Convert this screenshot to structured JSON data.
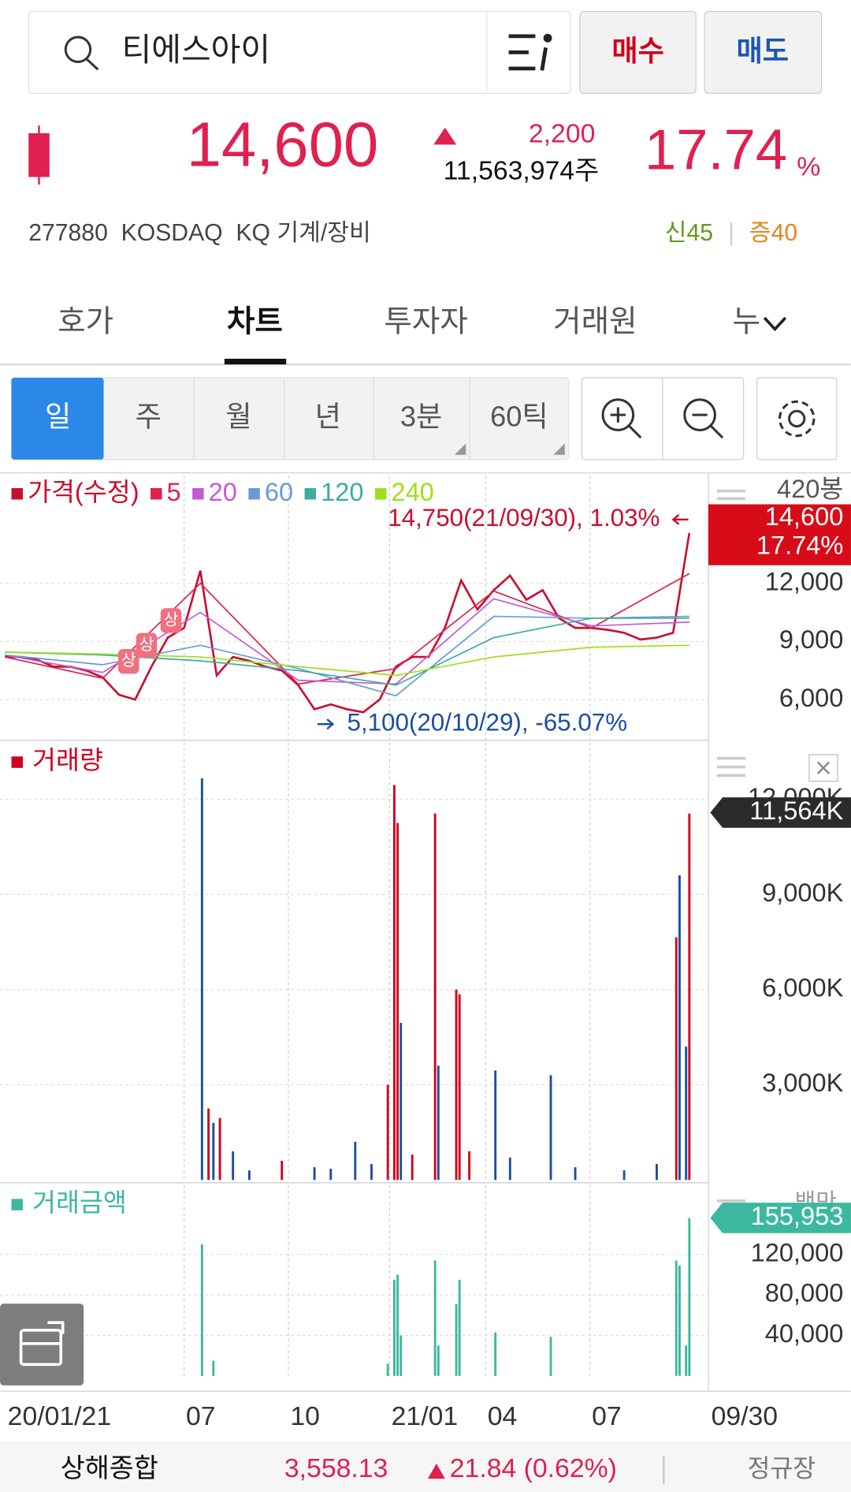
{
  "search": {
    "query": "티에스아이",
    "buy": "매수",
    "sell": "매도"
  },
  "quote": {
    "price": "14,600",
    "change": "2,200",
    "volume": "11,563,974주",
    "rate": "17.74",
    "rate_unit": "%",
    "code_line": "277880  KOSDAQ  KQ 기계/장비",
    "credit": "신45",
    "margin": "증40"
  },
  "tabs": [
    "호가",
    "차트",
    "투자자",
    "거래원",
    "누"
  ],
  "periods": [
    "일",
    "주",
    "월",
    "년",
    "3분",
    "60틱"
  ],
  "chart_data": [
    {
      "type": "line",
      "series": [
        {
          "name": "가격(수정)",
          "color": "#c8102e",
          "x": [
            0,
            10,
            20,
            30,
            40,
            50,
            60,
            70,
            80,
            90,
            100,
            110,
            120,
            130,
            140,
            150,
            160,
            170,
            180,
            190,
            200,
            210,
            220,
            230,
            240,
            250,
            260,
            270,
            280,
            290,
            300,
            310,
            320,
            330,
            340,
            350,
            360,
            370,
            380,
            390,
            400,
            410,
            420
          ],
          "values": [
            8200,
            8200,
            8050,
            7700,
            7700,
            7500,
            7150,
            6250,
            6000,
            7700,
            9200,
            9700,
            12650,
            7250,
            8200,
            8000,
            7700,
            7500,
            6750,
            5500,
            5750,
            5500,
            5350,
            6000,
            7700,
            8200,
            8200,
            9700,
            12150,
            10650,
            11650,
            12400,
            11150,
            11650,
            10200,
            9700,
            9700,
            9600,
            9450,
            9100,
            9200,
            9450,
            14600
          ]
        },
        {
          "name": "5",
          "color": "#e0204f",
          "x": [
            0,
            60,
            120,
            180,
            240,
            300,
            360,
            420
          ],
          "values": [
            8200,
            7100,
            12000,
            6800,
            7600,
            11600,
            9700,
            12500
          ]
        },
        {
          "name": "20",
          "color": "#c35bd4",
          "x": [
            0,
            60,
            120,
            180,
            240,
            300,
            360,
            420
          ],
          "values": [
            8300,
            7400,
            10500,
            7000,
            6800,
            11200,
            9800,
            10000
          ]
        },
        {
          "name": "60",
          "color": "#6a9ad6",
          "x": [
            0,
            60,
            120,
            180,
            240,
            300,
            360,
            420
          ],
          "values": [
            8300,
            7800,
            8800,
            7600,
            6200,
            10300,
            10200,
            10300
          ]
        },
        {
          "name": "120",
          "color": "#3aaea0",
          "x": [
            0,
            60,
            120,
            180,
            240,
            300,
            360,
            420
          ],
          "values": [
            8450,
            8300,
            8000,
            7500,
            6750,
            9200,
            10200,
            10200
          ]
        },
        {
          "name": "240",
          "color": "#9ee01a",
          "x": [
            0,
            60,
            120,
            180,
            240,
            300,
            360,
            420
          ],
          "values": [
            8450,
            8350,
            8200,
            7700,
            7250,
            8200,
            8700,
            8800
          ]
        }
      ],
      "xlim": [
        0,
        420
      ],
      "ylim": [
        3900,
        17550
      ],
      "yticks": [
        {
          "value": 6000,
          "label": "6,000"
        },
        {
          "value": 9000,
          "label": "9,000"
        },
        {
          "value": 12000,
          "label": "12,000"
        }
      ],
      "xticks": [
        {
          "value": 0,
          "label": "20/01/21"
        },
        {
          "value": 110,
          "label": "07"
        },
        {
          "value": 174,
          "label": "10"
        },
        {
          "value": 236,
          "label": "21/01"
        },
        {
          "value": 295,
          "label": "04"
        },
        {
          "value": 359,
          "label": "07"
        }
      ],
      "x_end_label": "09/30",
      "bar_count": "420봉",
      "last_price": "14,600",
      "last_rate": "17.74%",
      "high_note": "14,750(21/09/30), 1.03%",
      "low_note": "5,100(20/10/29), -65.07%",
      "markers": [
        {
          "x": 76,
          "value": 7970,
          "label": "상"
        },
        {
          "x": 87,
          "value": 8800,
          "label": "상"
        },
        {
          "x": 102,
          "value": 10080,
          "label": "상"
        }
      ]
    },
    {
      "type": "bar",
      "title": "거래량",
      "color": "#d0021b",
      "last": "11,564K",
      "series": [
        {
          "color": "#d0021b",
          "x": [
            125,
            132,
            170,
            235,
            239,
            241,
            250,
            264,
            277,
            279,
            285,
            412,
            420
          ],
          "values": [
            2250,
            1950,
            600,
            3000,
            12450,
            11250,
            800,
            11550,
            6000,
            5850,
            900,
            7650,
            11550
          ]
        },
        {
          "color": "#1a4fa0",
          "x": [
            121,
            128,
            140,
            150,
            190,
            200,
            215,
            225,
            243,
            266,
            301,
            310,
            335,
            350,
            380,
            400,
            414,
            418
          ],
          "values": [
            12660,
            1800,
            900,
            300,
            400,
            350,
            1200,
            500,
            4950,
            3600,
            3450,
            700,
            3300,
            400,
            300,
            500,
            9600,
            4200
          ]
        }
      ],
      "xlim": [
        0,
        420
      ],
      "ylim": [
        0,
        13800
      ],
      "yticks": [
        {
          "value": 3000,
          "label": "3,000K"
        },
        {
          "value": 6000,
          "label": "6,000K"
        },
        {
          "value": 9000,
          "label": "9,000K"
        },
        {
          "value": 12000,
          "label": "12,000K"
        }
      ]
    },
    {
      "type": "bar",
      "title": "거래금액",
      "color": "#3cb8a0",
      "last": "155,953",
      "unit": "백만",
      "series": [
        {
          "color": "#3cb8a0",
          "x": [
            121,
            128,
            235,
            239,
            241,
            243,
            264,
            266,
            277,
            279,
            301,
            335,
            412,
            414,
            418,
            420
          ],
          "values": [
            130000,
            15000,
            12000,
            95000,
            100000,
            40000,
            114000,
            30000,
            71000,
            95000,
            43000,
            38600,
            114000,
            109000,
            30000,
            155953
          ]
        }
      ],
      "xlim": [
        0,
        420
      ],
      "ylim": [
        0,
        189000
      ],
      "yticks": [
        {
          "value": 40000,
          "label": "40,000"
        },
        {
          "value": 80000,
          "label": "80,000"
        },
        {
          "value": 120000,
          "label": "120,000"
        }
      ]
    }
  ],
  "ticker": {
    "name": "상해종합",
    "value": "3,558.13",
    "change": "21.84 (0.62%)",
    "session": "정규장"
  }
}
